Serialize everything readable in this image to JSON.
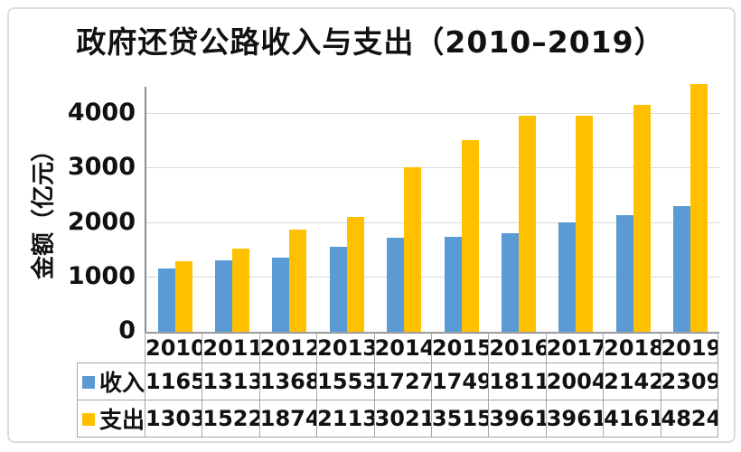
{
  "title": "政府还贷公路收入与支出（2010–2019）",
  "y_axis": {
    "label": "金额（亿元）"
  },
  "chart_data": {
    "type": "bar",
    "title": "政府还贷公路收入与支出（2010–2019）",
    "xlabel": "",
    "ylabel": "金额（亿元）",
    "categories": [
      "2010",
      "2011",
      "2012",
      "2013",
      "2014",
      "2015",
      "2016",
      "2017",
      "2018",
      "2019"
    ],
    "series": [
      {
        "name": "收入",
        "color": "#5B9BD5",
        "values": [
          1165,
          1313,
          1368,
          1553,
          1727,
          1749,
          1811,
          2004,
          2142,
          2309
        ]
      },
      {
        "name": "支出",
        "color": "#FFC000",
        "values": [
          1303,
          1522,
          1874,
          2113,
          3021,
          3515,
          3961,
          3961,
          4161,
          4824
        ]
      }
    ],
    "ylim": [
      0,
      4500
    ],
    "yticks": [
      0,
      1000,
      2000,
      3000,
      4000
    ],
    "grid": true,
    "gridline_color": "#d9d9d9",
    "axis_color": "#8c8c8c",
    "table_border_color": "#a6a6a6",
    "legend_position": "data-table-left",
    "data_table_shown": true
  }
}
